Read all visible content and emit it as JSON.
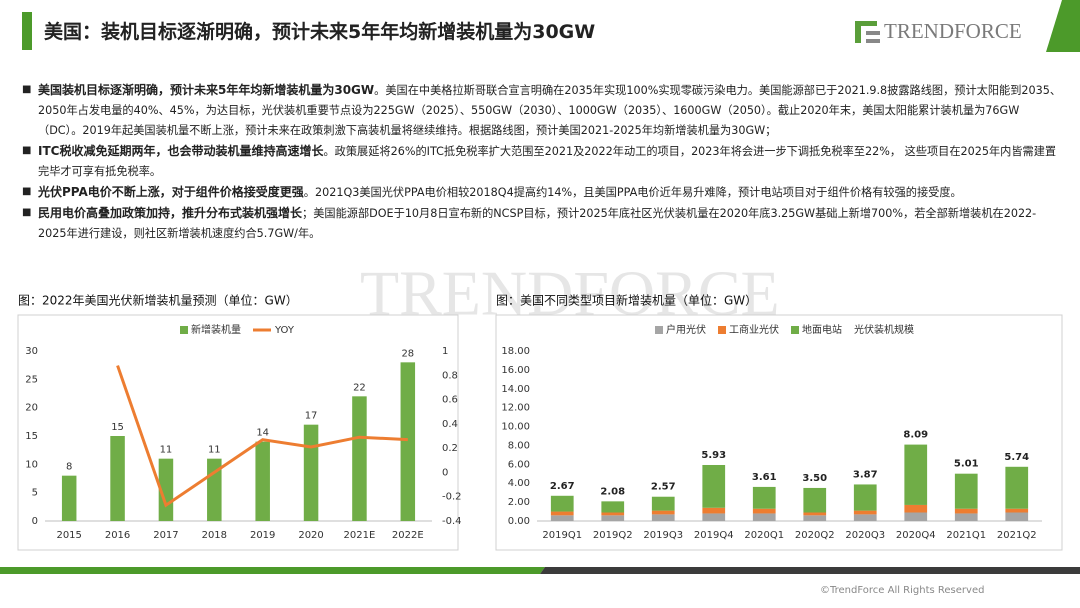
{
  "header": {
    "title": "美国：装机目标逐渐明确，预计未来5年年均新增装机量为30GW",
    "logo": "TRENDFORCE"
  },
  "bullets": [
    {
      "lead": "美国装机目标逐渐明确，预计未来5年年均新增装机量为30GW",
      "text": "。美国在中美格拉斯哥联合宣言明确在2035年实现100%实现零碳污染电力。美国能源部已于2021.9.8披露路线图，预计太阳能到2035、2050年占发电量的40%、45%，为达目标，光伏装机重要节点设为225GW（2025）、550GW（2030）、1000GW（2035）、1600GW（2050）。截止2020年末，美国太阳能累计装机量为76GW（DC）。2019年起美国装机量不断上涨，预计未来在政策刺激下高装机量将继续维持。根据路线图，预计美国2021-2025年均新增装机量为30GW；"
    },
    {
      "lead": "ITC税收减免延期两年，也会带动装机量维持高速增长",
      "text": "。政策展延将26%的ITC抵免税率扩大范围至2021及2022年动工的项目，2023年将会进一步下调抵免税率至22%， 这些项目在2025年内皆需建置完毕才可享有抵免税率。"
    },
    {
      "lead": "光伏PPA电价不断上涨，对于组件价格接受度更强",
      "text": "。2021Q3美国光伏PPA电价相较2018Q4提高约14%，且美国PPA电价近年易升难降，预计电站项目对于组件价格有较强的接受度。"
    },
    {
      "lead": "民用电价高叠加政策加持，推升分布式装机强增长",
      "text": "；美国能源部DOE于10月8日宣布新的NCSP目标，预计2025年底社区光伏装机量在2020年底3.25GW基础上新增700%，若全部新增装机在2022-2025年进行建设，则社区新增装机速度约合5.7GW/年。"
    }
  ],
  "chart_data": [
    {
      "type": "bar",
      "title": "图：2022年美国光伏新增装机量预测（单位：GW）",
      "categories": [
        "2015",
        "2016",
        "2017",
        "2018",
        "2019",
        "2020",
        "2021E",
        "2022E"
      ],
      "series": [
        {
          "name": "新增装机量",
          "color": "#70ad47",
          "values": [
            8,
            15,
            11,
            11,
            14,
            17,
            22,
            28
          ]
        },
        {
          "name": "YOY",
          "color": "#ed7d31",
          "type": "line",
          "axis": "y2",
          "values": [
            null,
            0.88,
            -0.27,
            0.0,
            0.27,
            0.21,
            0.29,
            0.27
          ]
        }
      ],
      "ylim": [
        0,
        30
      ],
      "yticks": [
        0,
        5,
        10,
        15,
        20,
        25,
        30
      ],
      "y2lim": [
        -0.4,
        1
      ],
      "y2ticks": [
        -0.4,
        -0.2,
        0,
        0.2,
        0.4,
        0.6,
        0.8,
        1
      ]
    },
    {
      "type": "stacked_bar",
      "title": "图：美国不同类型项目新增装机量（单位：GW）",
      "categories": [
        "2019Q1",
        "2019Q2",
        "2019Q3",
        "2019Q4",
        "2020Q1",
        "2020Q2",
        "2020Q3",
        "2020Q4",
        "2021Q1",
        "2021Q2"
      ],
      "series": [
        {
          "name": "户用光伏",
          "color": "#a5a5a5",
          "values": [
            0.6,
            0.6,
            0.7,
            0.8,
            0.8,
            0.6,
            0.7,
            0.9,
            0.8,
            0.9
          ]
        },
        {
          "name": "工商业光伏",
          "color": "#ed7d31",
          "values": [
            0.4,
            0.3,
            0.4,
            0.6,
            0.5,
            0.3,
            0.4,
            0.8,
            0.5,
            0.4
          ]
        },
        {
          "name": "地面电站",
          "color": "#70ad47",
          "values": [
            1.67,
            1.18,
            1.47,
            4.53,
            2.31,
            2.6,
            2.77,
            6.39,
            3.71,
            4.44
          ]
        },
        {
          "name": "光伏装机规模",
          "values": [
            2.67,
            2.08,
            2.57,
            5.93,
            3.61,
            3.5,
            3.87,
            8.09,
            5.01,
            5.74
          ],
          "value_labels": [
            "2.67",
            "2.08",
            "2.57",
            "5.93",
            "3.61",
            "3.50",
            "3.87",
            "8.09",
            "5.01",
            "5.74"
          ]
        }
      ],
      "ylim": [
        0,
        18
      ],
      "yticks": [
        {
          "value": 0,
          "label": "0.00"
        },
        {
          "value": 2,
          "label": "2.00"
        },
        {
          "value": 4,
          "label": "4.00"
        },
        {
          "value": 6,
          "label": "6.00"
        },
        {
          "value": 8,
          "label": "8.00"
        },
        {
          "value": 10,
          "label": "10.00"
        },
        {
          "value": 12,
          "label": "12.00"
        },
        {
          "value": 14,
          "label": "14.00"
        },
        {
          "value": 16,
          "label": "16.00"
        },
        {
          "value": 18,
          "label": "18.00"
        }
      ]
    }
  ],
  "footer": "©TrendForce All Rights Reserved"
}
